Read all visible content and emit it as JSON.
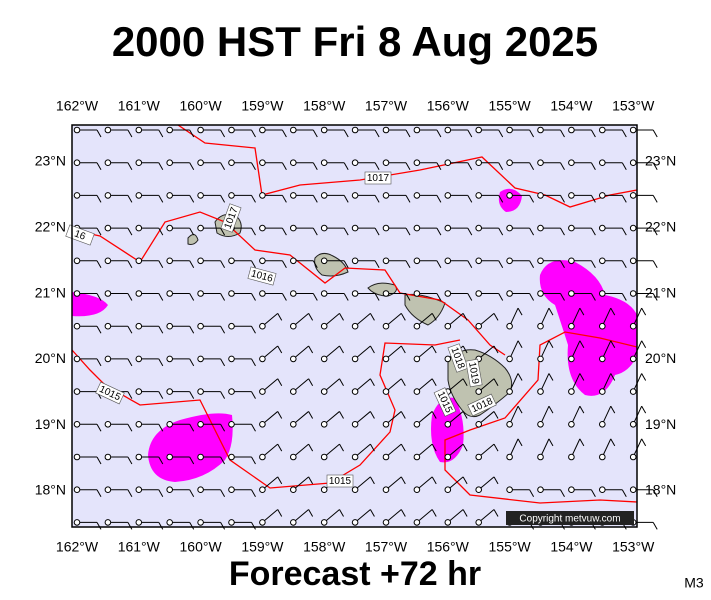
{
  "title": "2000 HST Fri 8 Aug 2025",
  "subtitle": "Forecast +72 hr",
  "corner_label": "M3",
  "copyright": "Copyright metvuw.com",
  "longitude_labels": [
    "162°W",
    "161°W",
    "160°W",
    "159°W",
    "158°W",
    "157°W",
    "156°W",
    "155°W",
    "154°W",
    "153°W"
  ],
  "latitude_labels": [
    "23°N",
    "22°N",
    "21°N",
    "20°N",
    "19°N",
    "18°N"
  ],
  "isobar_labels": [
    "1017",
    "1017",
    "1016",
    "16",
    "1015",
    "1015",
    "1018",
    "1019",
    "1015",
    "1018"
  ]
}
